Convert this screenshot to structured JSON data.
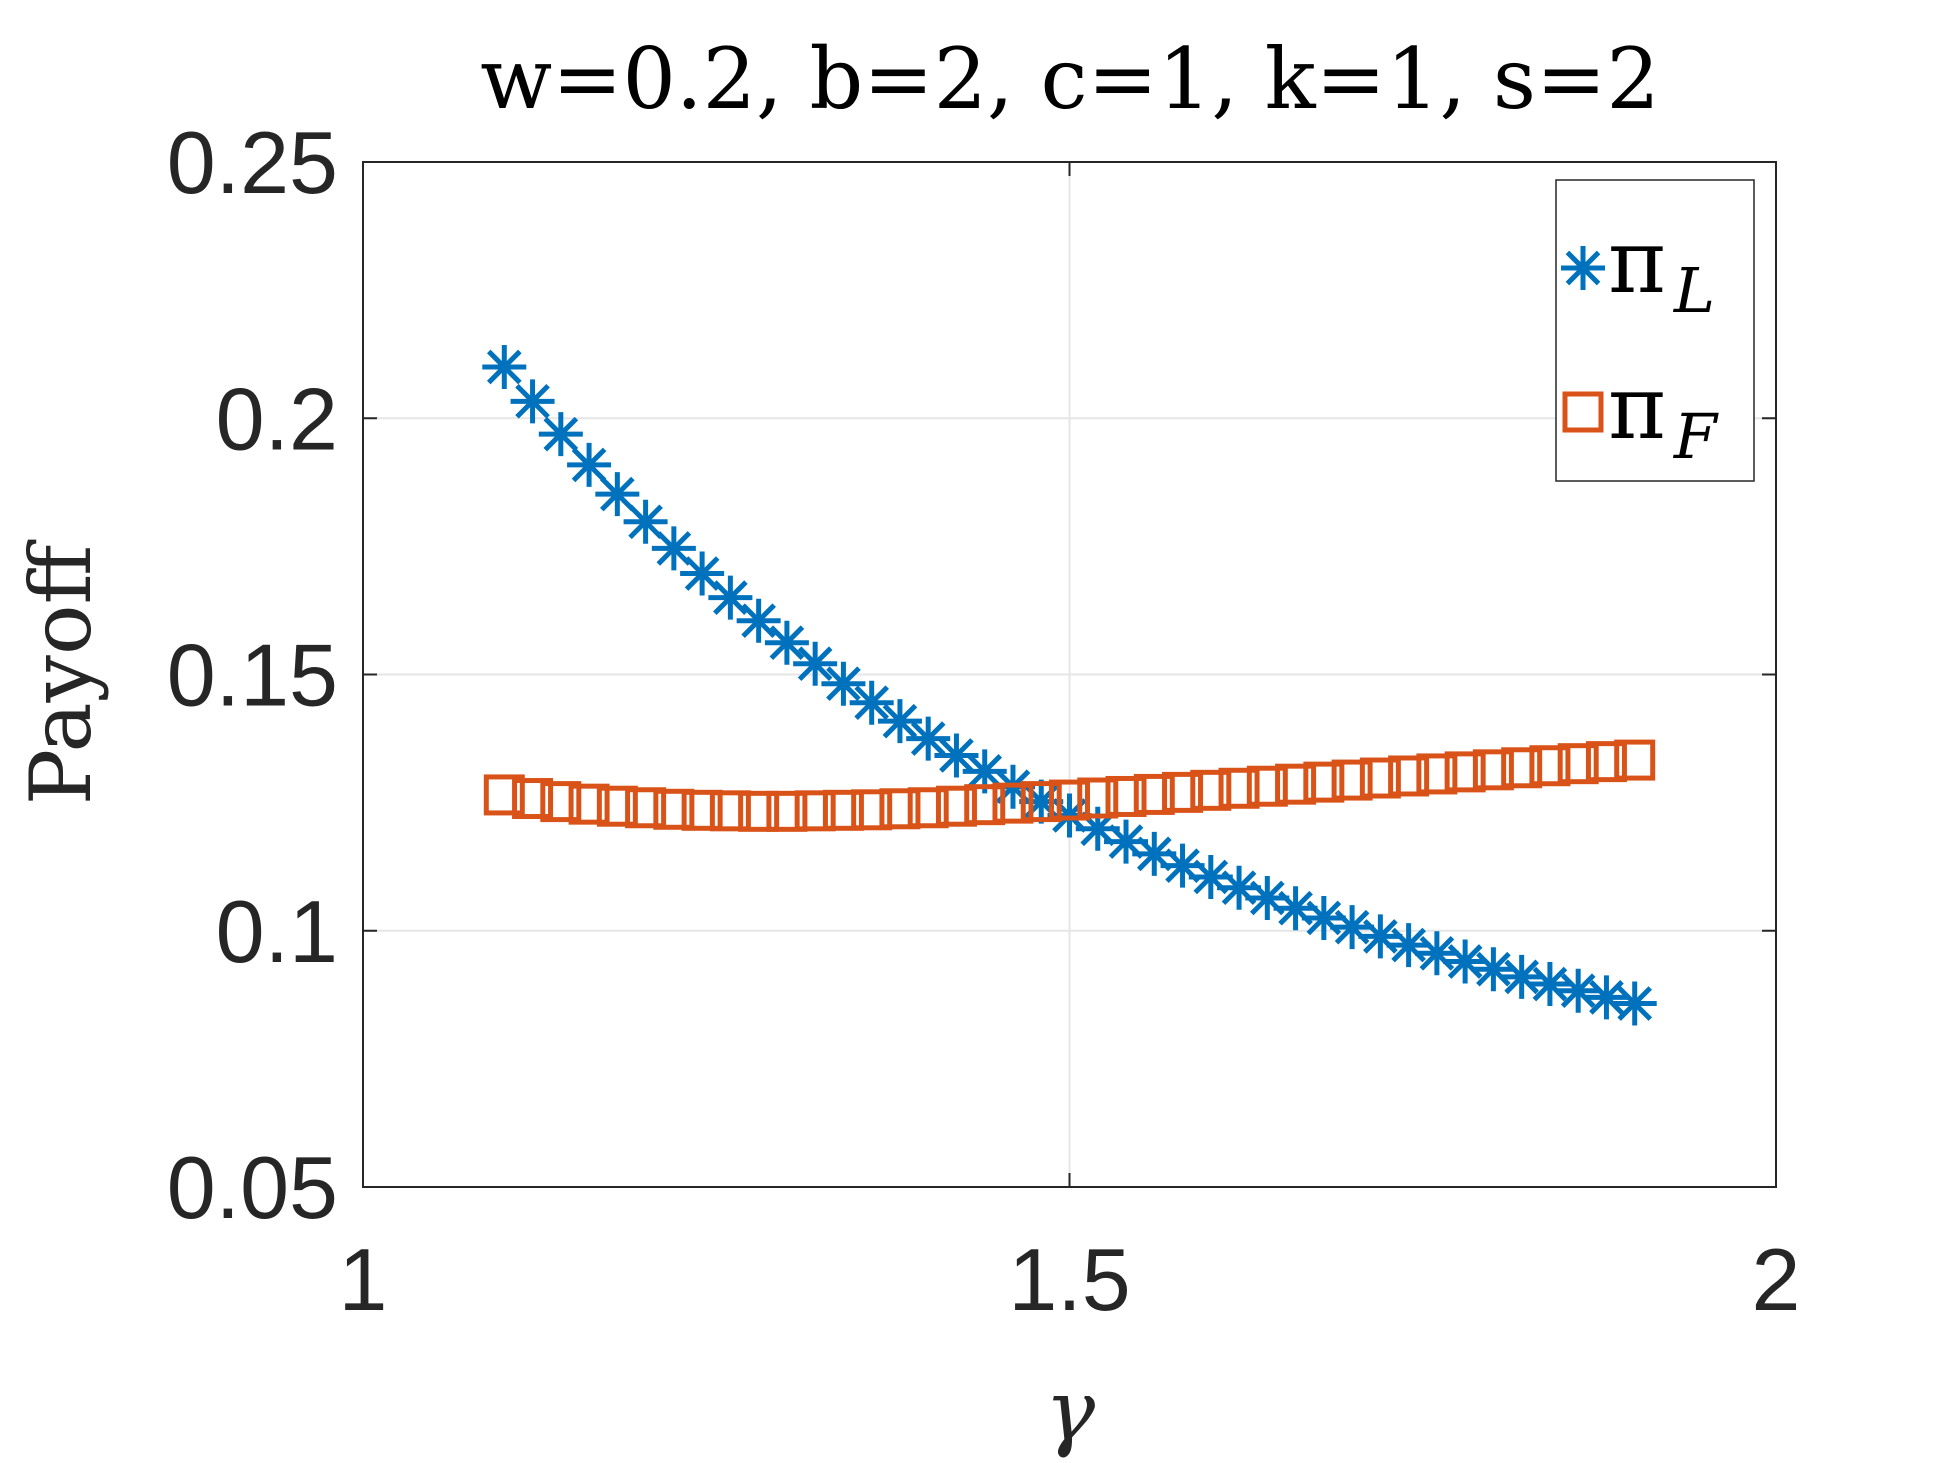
{
  "chart_data": {
    "type": "scatter",
    "title": "w=0.2, b=2, c=1, k=1, s=2",
    "xlabel": "γ",
    "ylabel": "Payoff",
    "xlim": [
      1,
      2
    ],
    "ylim": [
      0.05,
      0.25
    ],
    "xticks": [
      "1",
      "1.5",
      "2"
    ],
    "yticks": [
      "0.05",
      "0.1",
      "0.15",
      "0.2",
      "0.25"
    ],
    "grid": true,
    "legend_position": "top-right",
    "series": [
      {
        "name": "π",
        "subscript": "L",
        "marker": "asterisk",
        "color": "#0072BD",
        "x": [
          1.1,
          1.12,
          1.14,
          1.16,
          1.18,
          1.2,
          1.22,
          1.24,
          1.26,
          1.28,
          1.3,
          1.32,
          1.34,
          1.36,
          1.38,
          1.4,
          1.42,
          1.44,
          1.46,
          1.48,
          1.5,
          1.52,
          1.54,
          1.56,
          1.58,
          1.6,
          1.62,
          1.64,
          1.66,
          1.68,
          1.7,
          1.72,
          1.74,
          1.76,
          1.78,
          1.8,
          1.82,
          1.84,
          1.86,
          1.88,
          1.9
        ],
        "y": [
          0.21,
          0.2033,
          0.1969,
          0.1909,
          0.1852,
          0.1798,
          0.1746,
          0.1697,
          0.165,
          0.1605,
          0.1562,
          0.1521,
          0.1482,
          0.1445,
          0.1409,
          0.1375,
          0.1342,
          0.1311,
          0.1281,
          0.1252,
          0.1225,
          0.1199,
          0.1174,
          0.115,
          0.1127,
          0.1105,
          0.1084,
          0.1064,
          0.1044,
          0.1025,
          0.1007,
          0.0989,
          0.0972,
          0.0956,
          0.094,
          0.0925,
          0.091,
          0.0896,
          0.0883,
          0.087,
          0.0858
        ]
      },
      {
        "name": "π",
        "subscript": "F",
        "marker": "square",
        "color": "#D95319",
        "x": [
          1.1,
          1.12,
          1.14,
          1.16,
          1.18,
          1.2,
          1.22,
          1.24,
          1.26,
          1.28,
          1.3,
          1.32,
          1.34,
          1.36,
          1.38,
          1.4,
          1.42,
          1.44,
          1.46,
          1.48,
          1.5,
          1.52,
          1.54,
          1.56,
          1.58,
          1.6,
          1.62,
          1.64,
          1.66,
          1.68,
          1.7,
          1.72,
          1.74,
          1.76,
          1.78,
          1.8,
          1.82,
          1.84,
          1.86,
          1.88,
          1.9
        ],
        "y": [
          0.1265,
          0.1258,
          0.1252,
          0.1247,
          0.1243,
          0.124,
          0.1237,
          0.1235,
          0.1234,
          0.1233,
          0.1233,
          0.1234,
          0.1235,
          0.1236,
          0.1238,
          0.124,
          0.1243,
          0.1246,
          0.1249,
          0.1252,
          0.1255,
          0.1259,
          0.1262,
          0.1266,
          0.127,
          0.1274,
          0.1278,
          0.1282,
          0.1286,
          0.129,
          0.1294,
          0.1298,
          0.1302,
          0.1306,
          0.131,
          0.1314,
          0.1318,
          0.1322,
          0.1326,
          0.133,
          0.1333
        ]
      }
    ]
  }
}
